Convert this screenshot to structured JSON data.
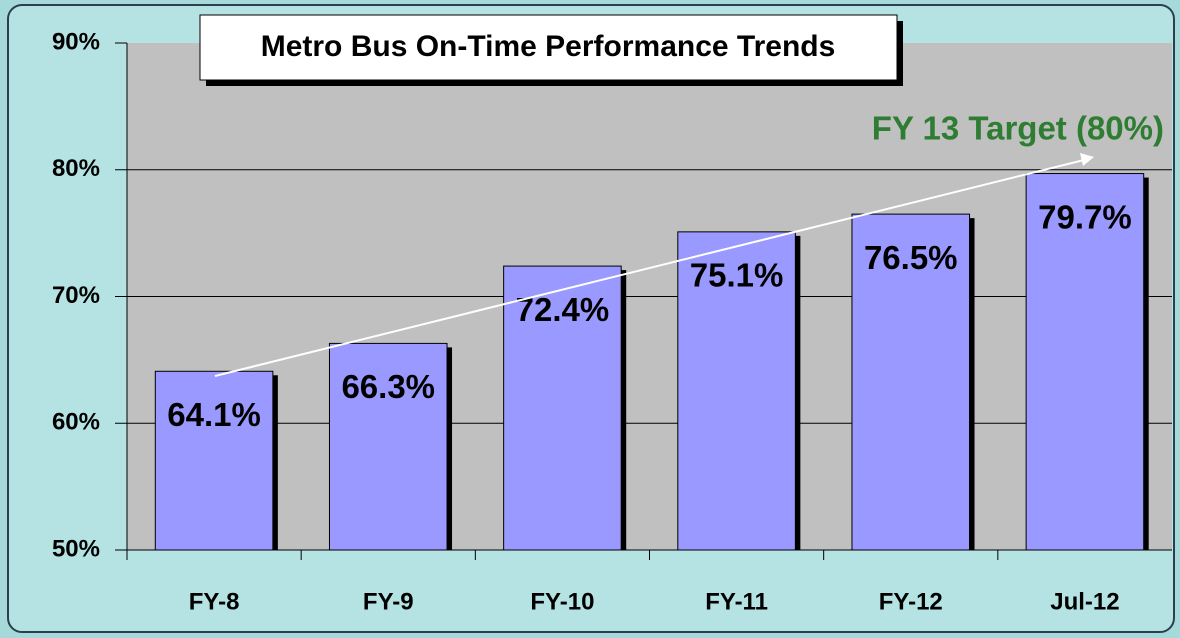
{
  "chart_data": {
    "type": "bar",
    "title": "Metro Bus On-Time Performance Trends",
    "categories": [
      "FY-8",
      "FY-9",
      "FY-10",
      "FY-11",
      "FY-12",
      "Jul-12"
    ],
    "values": [
      64.1,
      66.3,
      72.4,
      75.1,
      76.5,
      79.7
    ],
    "value_labels": [
      "64.1%",
      "66.3%",
      "72.4%",
      "75.1%",
      "76.5%",
      "79.7%"
    ],
    "color": "#9999ff",
    "ylim": [
      50,
      90
    ],
    "yticks": [
      {
        "value": 50,
        "label": "50%"
      },
      {
        "value": 60,
        "label": "60%"
      },
      {
        "value": 70,
        "label": "70%"
      },
      {
        "value": 80,
        "label": "80%"
      },
      {
        "value": 90,
        "label": "90%"
      }
    ],
    "grid": true,
    "annotation": "FY 13 Target (80%)"
  }
}
